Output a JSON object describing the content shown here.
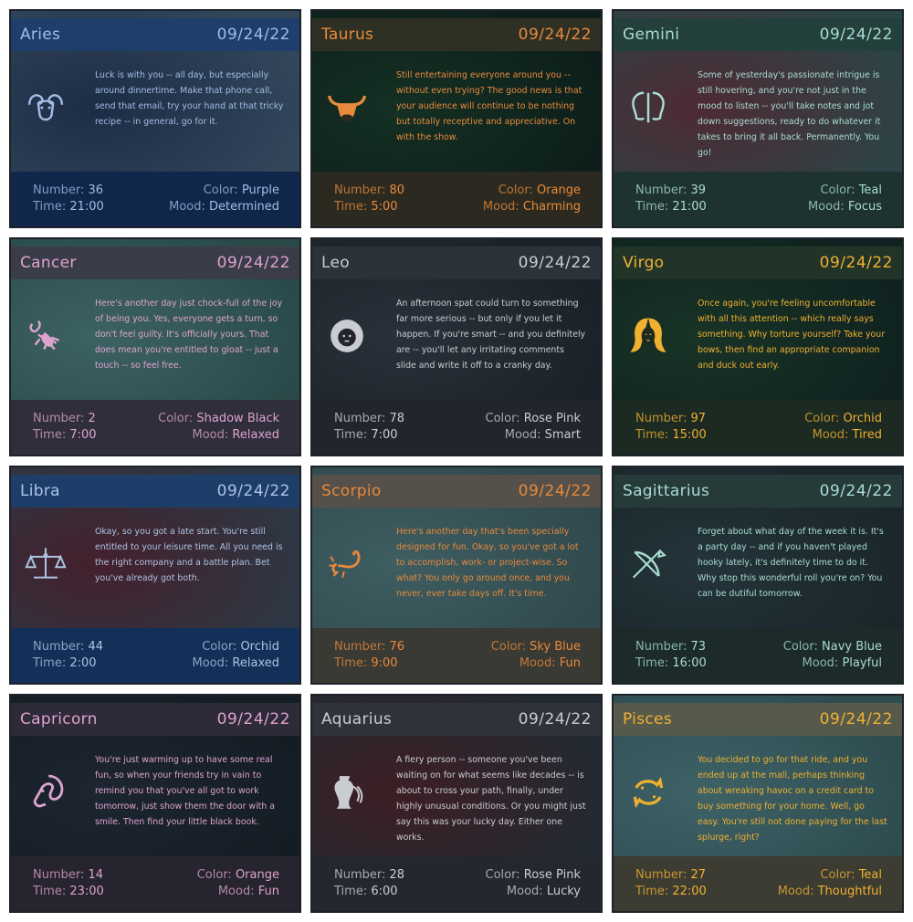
{
  "cards": [
    {
      "sign": "Aries",
      "date": "09/24/22",
      "text": "Luck is with you -- all day, but especially around dinnertime. Make that phone call, send that email, try your hand at that tricky recipe -- in general, go for it.",
      "number": "36",
      "time": "21:00",
      "color": "Purple",
      "mood": "Determined",
      "icon": "ram-icon",
      "accent": "#a3bde4",
      "bg1": "#1c2c46",
      "bg2": "#33465a",
      "head": "#1f3e6c",
      "foot": "#10264a"
    },
    {
      "sign": "Taurus",
      "date": "09/24/22",
      "text": "Still entertaining everyone around you -- without even trying? The good news is that your audience will continue to be nothing but totally receptive and appreciative. On with the show.",
      "number": "80",
      "time": "5:00",
      "color": "Orange",
      "mood": "Charming",
      "icon": "bull-icon",
      "accent": "#e88a3c",
      "bg1": "#143024",
      "bg2": "#0d1e1a",
      "head": "#2e3024",
      "foot": "#2c2a20"
    },
    {
      "sign": "Gemini",
      "date": "09/24/22",
      "text": "Some of yesterday's passionate intrigue is still hovering, and you're not just in the mood to listen -- you'll take notes and jot down suggestions, ready to do whatever it takes to bring it all back. Permanently. You go!",
      "number": "39",
      "time": "21:00",
      "color": "Teal",
      "mood": "Focus",
      "icon": "twins-icon",
      "accent": "#a9dcd2",
      "bg1": "#4e2a34",
      "bg2": "#2c4446",
      "head": "#23403c",
      "foot": "#1e3230"
    },
    {
      "sign": "Cancer",
      "date": "09/24/22",
      "text": "Here's another day just chock-full of the joy of being you. Yes, everyone gets a turn, so don't feel guilty. It's officially yours. That does mean you're entitled to gloat -- just a touch -- so feel free.",
      "number": "2",
      "time": "7:00",
      "color": "Shadow Black",
      "mood": "Relaxed",
      "icon": "crab-icon",
      "accent": "#dda3cf",
      "bg1": "#3d6262",
      "bg2": "#2a4a4a",
      "head": "#3a3c48",
      "foot": "#2f2e3a"
    },
    {
      "sign": "Leo",
      "date": "09/24/22",
      "text": "An afternoon spat could turn to something far more serious -- but only if you let it happen. If you're smart -- and you definitely are -- you'll let any irritating comments slide and write it off to a cranky day.",
      "number": "78",
      "time": "7:00",
      "color": "Rose Pink",
      "mood": "Smart",
      "icon": "lion-icon",
      "accent": "#c9cdd2",
      "bg1": "#28313a",
      "bg2": "#1b2128",
      "head": "#2c323a",
      "foot": "#22262c"
    },
    {
      "sign": "Virgo",
      "date": "09/24/22",
      "text": "Once again, you're feeling uncomfortable with all this attention -- which really says something. Why torture yourself? Take your bows, then find an appropriate companion and duck out early.",
      "number": "97",
      "time": "15:00",
      "color": "Orchid",
      "mood": "Tired",
      "icon": "maiden-icon",
      "accent": "#f0b030",
      "bg1": "#193326",
      "bg2": "#0f2220",
      "head": "#223428",
      "foot": "#1c2a22"
    },
    {
      "sign": "Libra",
      "date": "09/24/22",
      "text": "Okay, so you got a late start. You're still entitled to your leisure time. All you need is the right company and a battle plan. Bet you've already got both.",
      "number": "44",
      "time": "2:00",
      "color": "Orchid",
      "mood": "Relaxed",
      "icon": "scales-icon",
      "accent": "#aec2e2",
      "bg1": "#44202c",
      "bg2": "#2d3844",
      "head": "#1e3e6a",
      "foot": "#123058"
    },
    {
      "sign": "Scorpio",
      "date": "09/24/22",
      "text": "Here's another day that's been specially designed for fun. Okay, so you've got a lot to accomplish, work- or project-wise. So what? You only go around once, and you never, ever take days off. It's time.",
      "number": "76",
      "time": "9:00",
      "color": "Sky Blue",
      "mood": "Fun",
      "icon": "scorpion-icon",
      "accent": "#e8883a",
      "bg1": "#3e5e62",
      "bg2": "#30494c",
      "head": "#55504a",
      "foot": "#3a3a34"
    },
    {
      "sign": "Sagittarius",
      "date": "09/24/22",
      "text": "Forget about what day of the week it is. It's a party day -- and if you haven't played hooky lately, it's definitely time to do it. Why stop this wonderful roll you're on? You can be dutiful tomorrow.",
      "number": "73",
      "time": "16:00",
      "color": "Navy Blue",
      "mood": "Playful",
      "icon": "bow-icon",
      "accent": "#a9dcd2",
      "bg1": "#23343a",
      "bg2": "#1a262a",
      "head": "#263a3a",
      "foot": "#1c2a2a"
    },
    {
      "sign": "Capricorn",
      "date": "09/24/22",
      "text": "You're just warming up to have some real fun, so when your friends try in vain to remind you that you've all got to work tomorrow, just show them the door with a smile. Then find your little black book.",
      "number": "14",
      "time": "23:00",
      "color": "Orange",
      "mood": "Fun",
      "icon": "goat-icon",
      "accent": "#dda3cf",
      "bg1": "#1d2630",
      "bg2": "#141c24",
      "head": "#2e2a38",
      "foot": "#26242e"
    },
    {
      "sign": "Aquarius",
      "date": "09/24/22",
      "text": "A fiery person -- someone you've been waiting on for what seems like decades -- is about to cross your path, finally, under highly unusual conditions. Or you might just say this was your lucky day. Either one works.",
      "number": "28",
      "time": "6:00",
      "color": "Rose Pink",
      "mood": "Lucky",
      "icon": "water-bearer-icon",
      "accent": "#c9cdd2",
      "bg1": "#3c1e24",
      "bg2": "#232a32",
      "head": "#2f3238",
      "foot": "#24282e"
    },
    {
      "sign": "Pisces",
      "date": "09/24/22",
      "text": "You decided to go for that ride, and you ended up at the mall, perhaps thinking about wreaking havoc on a credit card to buy something for your home. Well, go easy. You're still not done paying for the last splurge, right?",
      "number": "27",
      "time": "22:00",
      "color": "Teal",
      "mood": "Thoughtful",
      "icon": "fish-icon",
      "accent": "#f0b030",
      "bg1": "#3e6266",
      "bg2": "#2e4c50",
      "head": "#565a4c",
      "foot": "#3c3c32"
    }
  ],
  "labels": {
    "number": "Number:",
    "time": "Time:",
    "color": "Color:",
    "mood": "Mood:"
  }
}
